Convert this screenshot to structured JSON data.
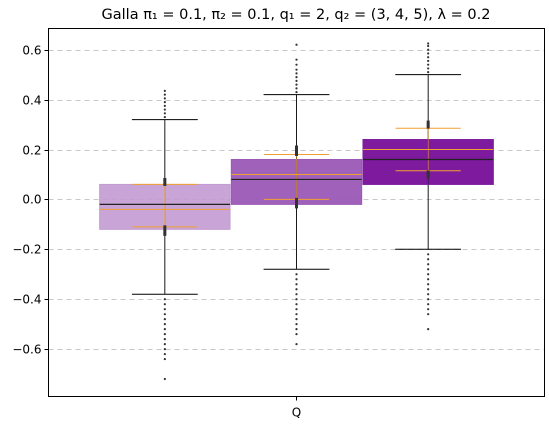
{
  "chart_data": {
    "type": "box",
    "title": "Galla π₁ = 0.1, π₂ = 0.1, q₁ = 2, q₂ = (3, 4, 5), λ = 0.2",
    "xlabel": "",
    "ylabel": "",
    "categories": [
      "Q"
    ],
    "ylim": [
      -0.79,
      0.685
    ],
    "yticks": [
      -0.6,
      -0.4,
      -0.2,
      0.0,
      0.2,
      0.4,
      0.6
    ],
    "ytick_labels": [
      "−0.6",
      "−0.4",
      "−0.2",
      "0.0",
      "0.2",
      "0.4",
      "0.6"
    ],
    "grid": "horizontal dashed",
    "boxes": [
      {
        "color": "#c39bd3",
        "opacity": 0.9,
        "q1": -0.12,
        "median": -0.02,
        "q3": 0.06,
        "mean": -0.04,
        "ci_low": -0.11,
        "ci_high": 0.06,
        "whisker_low": -0.38,
        "whisker_high": 0.32,
        "outliers_low": [
          -0.4,
          -0.42,
          -0.44,
          -0.46,
          -0.48,
          -0.5,
          -0.52,
          -0.54,
          -0.56,
          -0.58,
          -0.6,
          -0.62,
          -0.64,
          -0.72
        ],
        "outliers_high": [
          0.33,
          0.345,
          0.36,
          0.375,
          0.39,
          0.405,
          0.42,
          0.435
        ],
        "marker_clusters": [
          0.06,
          0.07,
          0.08,
          -0.11,
          -0.12,
          -0.13,
          -0.14
        ]
      },
      {
        "color": "#9b59b6",
        "opacity": 0.95,
        "q1": -0.02,
        "median": 0.08,
        "q3": 0.16,
        "mean": 0.1,
        "ci_low": 0.0,
        "ci_high": 0.18,
        "whisker_low": -0.28,
        "whisker_high": 0.42,
        "outliers_low": [
          -0.3,
          -0.32,
          -0.34,
          -0.36,
          -0.38,
          -0.4,
          -0.42,
          -0.44,
          -0.46,
          -0.48,
          -0.5,
          -0.52,
          -0.54,
          -0.58
        ],
        "outliers_high": [
          0.43,
          0.445,
          0.46,
          0.475,
          0.49,
          0.505,
          0.52,
          0.54,
          0.56,
          0.62
        ],
        "marker_clusters": [
          0.18,
          0.19,
          0.2,
          0.21,
          -0.0,
          -0.01,
          -0.02,
          -0.03
        ]
      },
      {
        "color": "#7d1a9e",
        "opacity": 1.0,
        "q1": 0.06,
        "median": 0.16,
        "q3": 0.24,
        "mean": 0.2,
        "ci_low": 0.115,
        "ci_high": 0.285,
        "whisker_low": -0.2,
        "whisker_high": 0.5,
        "outliers_low": [
          -0.22,
          -0.24,
          -0.26,
          -0.28,
          -0.3,
          -0.32,
          -0.34,
          -0.36,
          -0.38,
          -0.4,
          -0.42,
          -0.44,
          -0.46,
          -0.52
        ],
        "outliers_high": [
          0.51,
          0.525,
          0.54,
          0.555,
          0.57,
          0.585,
          0.6,
          0.615,
          0.625
        ],
        "marker_clusters": [
          0.29,
          0.3,
          0.31,
          0.09,
          0.1,
          0.11
        ]
      }
    ]
  }
}
